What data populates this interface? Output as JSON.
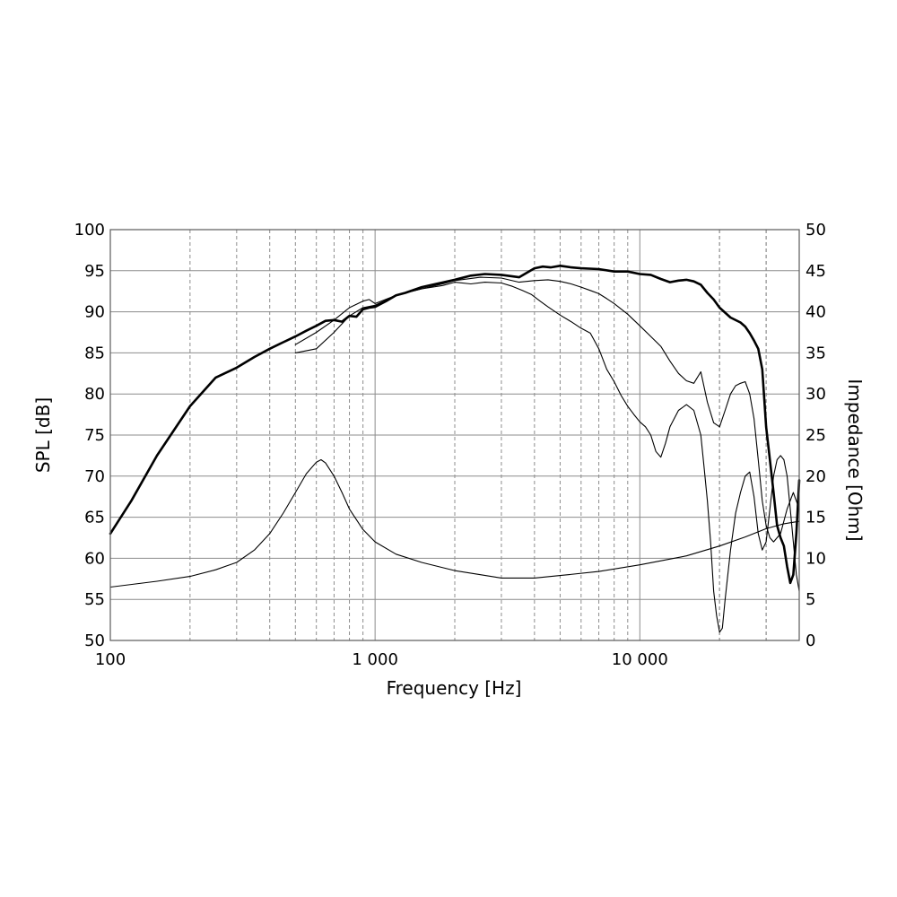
{
  "chart_data": {
    "type": "line",
    "xlabel": "Frequency [Hz]",
    "ylabel": "SPL [dB]",
    "y2label": "Impedance [Ohm]",
    "xscale": "log",
    "xlim": [
      100,
      40000
    ],
    "ylim": [
      50,
      100
    ],
    "y2lim": [
      0,
      50
    ],
    "grid": true,
    "x_tick_labels": [
      {
        "value": 100,
        "label": "100"
      },
      {
        "value": 1000,
        "label": "1 000"
      },
      {
        "value": 10000,
        "label": "10 000"
      }
    ],
    "y_tick_labels": [
      "50",
      "55",
      "60",
      "65",
      "70",
      "75",
      "80",
      "85",
      "90",
      "95",
      "100"
    ],
    "y2_tick_labels": [
      "0",
      "5",
      "10",
      "15",
      "20",
      "25",
      "30",
      "35",
      "40",
      "45",
      "50"
    ],
    "series": [
      {
        "axis": "left",
        "style": "bold",
        "x": [
          100,
          120,
          150,
          200,
          250,
          300,
          350,
          400,
          450,
          500,
          550,
          600,
          650,
          700,
          750,
          800,
          850,
          900,
          950,
          1000,
          1100,
          1200,
          1300,
          1500,
          1700,
          2000,
          2300,
          2600,
          3000,
          3500,
          4000,
          4300,
          4600,
          5000,
          5500,
          6000,
          7000,
          8000,
          9000,
          10000,
          11000,
          12000,
          13000,
          14000,
          15000,
          16000,
          17000,
          18000,
          19000,
          20000,
          22000,
          24000,
          25000,
          26000,
          27000,
          28000,
          29000,
          30000,
          31000,
          32000,
          33000,
          34000,
          35000,
          36000,
          37000,
          38000,
          39000,
          40000
        ],
        "y": [
          63,
          67,
          72.5,
          78.5,
          82,
          83.2,
          84.5,
          85.5,
          86.3,
          87,
          87.7,
          88.3,
          88.9,
          89,
          88.8,
          89.5,
          89.4,
          90.3,
          90.5,
          90.6,
          91.3,
          92,
          92.3,
          93,
          93.4,
          93.9,
          94.4,
          94.6,
          94.5,
          94.2,
          95.3,
          95.5,
          95.4,
          95.6,
          95.4,
          95.3,
          95.2,
          94.9,
          94.9,
          94.6,
          94.5,
          94,
          93.6,
          93.8,
          93.9,
          93.7,
          93.3,
          92.3,
          91.5,
          90.5,
          89.3,
          88.7,
          88.2,
          87.4,
          86.5,
          85.5,
          83,
          76,
          72,
          68,
          64,
          62.5,
          61.5,
          59,
          57,
          58,
          63,
          69.5
        ]
      },
      {
        "axis": "left",
        "style": "thin",
        "x": [
          500,
          600,
          700,
          800,
          900,
          1000,
          1200,
          1500,
          1800,
          2000,
          2500,
          3000,
          3500,
          4000,
          4500,
          5000,
          5500,
          6000,
          6500,
          7000,
          7500,
          8000,
          9000,
          10000,
          11000,
          12000,
          13000,
          14000,
          15000,
          16000,
          17000,
          18000,
          19000,
          20000,
          21000,
          22000,
          23000,
          24000,
          25000,
          26000,
          27000,
          28000,
          29000,
          30000,
          31000,
          32000,
          34000,
          36000,
          38000,
          40000
        ],
        "y": [
          85,
          85.5,
          87.5,
          89.5,
          90.5,
          90.8,
          92,
          92.8,
          93.4,
          93.8,
          94.2,
          94.1,
          93.6,
          93.8,
          93.9,
          93.7,
          93.4,
          93,
          92.6,
          92.2,
          91.6,
          91,
          89.7,
          88.3,
          87,
          85.8,
          84,
          82.5,
          81.6,
          81.3,
          82.7,
          79,
          76.5,
          76,
          78,
          80,
          81,
          81.3,
          81.5,
          80,
          77,
          72,
          67,
          64,
          62.5,
          62,
          63,
          66,
          68,
          66
        ]
      },
      {
        "axis": "left",
        "style": "thin",
        "x": [
          500,
          600,
          700,
          800,
          900,
          950,
          1000,
          1200,
          1500,
          1800,
          2000,
          2300,
          2600,
          3000,
          3300,
          3600,
          3900,
          4200,
          4500,
          5000,
          5500,
          6000,
          6500,
          7000,
          7500,
          8000,
          8500,
          9000,
          9500,
          10000,
          10500,
          11000,
          11500,
          12000,
          12500,
          13000,
          14000,
          15000,
          16000,
          17000,
          17500,
          18000,
          18500,
          19000,
          19500,
          20000,
          20500,
          21000,
          22000,
          23000,
          24000,
          25000,
          26000,
          27000,
          28000,
          29000,
          30000,
          31000,
          32000,
          33000,
          34000,
          35000,
          36000,
          37000,
          38000,
          39000,
          40000
        ],
        "y": [
          86,
          87.5,
          89,
          90.5,
          91.3,
          91.5,
          91,
          92,
          92.8,
          93.2,
          93.6,
          93.4,
          93.6,
          93.5,
          93.1,
          92.6,
          92.1,
          91.3,
          90.6,
          89.6,
          88.8,
          88,
          87.4,
          85.5,
          83,
          81.5,
          79.8,
          78.5,
          77.5,
          76.6,
          76,
          75,
          73,
          72.3,
          74,
          76,
          78,
          78.7,
          78,
          75,
          71,
          67,
          62,
          56,
          53,
          51,
          51.5,
          55,
          61,
          65.5,
          68,
          70,
          70.5,
          67.5,
          63,
          61,
          62,
          66,
          70,
          72,
          72.5,
          72,
          70,
          66,
          62,
          58,
          56
        ]
      },
      {
        "axis": "right",
        "style": "thin",
        "x": [
          100,
          150,
          200,
          250,
          300,
          350,
          400,
          450,
          500,
          550,
          600,
          625,
          650,
          700,
          750,
          800,
          900,
          1000,
          1200,
          1500,
          2000,
          2500,
          3000,
          4000,
          5000,
          7000,
          10000,
          15000,
          20000,
          25000,
          30000,
          35000,
          40000
        ],
        "y": [
          6.5,
          7.2,
          7.8,
          8.6,
          9.5,
          11,
          13,
          15.5,
          18,
          20.3,
          21.7,
          22,
          21.6,
          20,
          18,
          16,
          13.5,
          12,
          10.5,
          9.5,
          8.5,
          8,
          7.6,
          7.6,
          7.9,
          8.4,
          9.2,
          10.3,
          11.5,
          12.6,
          13.6,
          14.2,
          14.5
        ]
      }
    ]
  }
}
